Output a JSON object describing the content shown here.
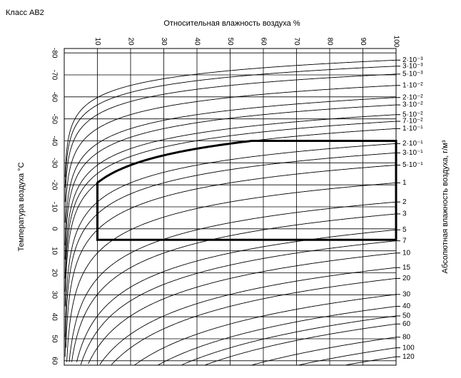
{
  "chart_data": {
    "type": "climatogram",
    "title": "Класс АВ2",
    "x_label": "Относительная влажность воздуха %",
    "y_label": "Температура воздуха °С",
    "y2_label": "Абсолютная влажность воздуха, г/м³",
    "xlim": [
      0,
      100
    ],
    "xticks": [
      10,
      20,
      30,
      40,
      50,
      60,
      70,
      80,
      90,
      100
    ],
    "ylim": [
      -82,
      62
    ],
    "y_inverted": true,
    "yticks": [
      -80,
      -70,
      -60,
      -50,
      -40,
      -30,
      -20,
      -10,
      0,
      10,
      20,
      30,
      40,
      50,
      60
    ],
    "y2_scale": "saturation",
    "y2ticks": [
      {
        "value": 0.002,
        "label": "2·10⁻³"
      },
      {
        "value": 0.003,
        "label": "3·10⁻³"
      },
      {
        "value": 0.005,
        "label": "5·10⁻³"
      },
      {
        "value": 0.01,
        "label": "1·10⁻²"
      },
      {
        "value": 0.02,
        "label": "2·10⁻²"
      },
      {
        "value": 0.03,
        "label": "3·10⁻²"
      },
      {
        "value": 0.05,
        "label": "5·10⁻²"
      },
      {
        "value": 0.07,
        "label": "7·10⁻²"
      },
      {
        "value": 0.1,
        "label": "1·10⁻¹"
      },
      {
        "value": 0.2,
        "label": "2·10⁻¹"
      },
      {
        "value": 0.3,
        "label": "3·10⁻¹"
      },
      {
        "value": 0.5,
        "label": "5·10⁻¹"
      },
      1,
      2,
      3,
      5,
      7,
      10,
      15,
      20,
      30,
      40,
      50,
      60,
      80,
      100,
      120
    ],
    "grid": true,
    "region": {
      "temperature": [
        -40,
        5
      ],
      "relative_humidity": [
        10,
        100
      ],
      "absolute_humidity": [
        0.1,
        7
      ]
    },
    "color": "#000000"
  }
}
